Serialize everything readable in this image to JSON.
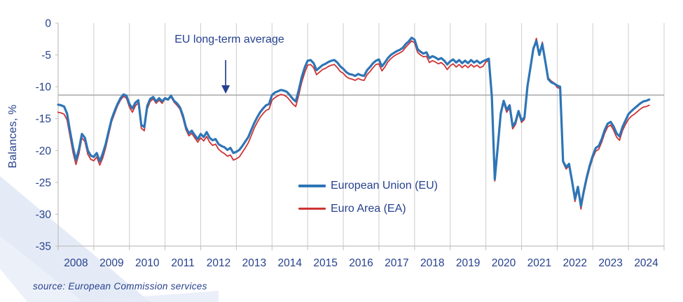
{
  "colors": {
    "navy": "#26418E",
    "grid": "#CDCDCD",
    "axis": "#BFBFBF",
    "avg_line": "#A8A8A8",
    "eu_blue": "#2E75B6",
    "ea_red": "#CE3333",
    "background": "#FFFFFF",
    "decoration": "#E1E7F4"
  },
  "source": {
    "text": "source: European Commission services"
  },
  "chart_data": {
    "type": "line",
    "title": "",
    "xlabel": "",
    "ylabel": "Balances, %",
    "frequency": "monthly",
    "x_start": "2008-01",
    "x_end": "2024-08",
    "ylim": [
      -35,
      0
    ],
    "y_ticks": [
      0,
      -5,
      -10,
      -15,
      -20,
      -25,
      -30,
      -35
    ],
    "x_tick_labels": [
      "2008",
      "2009",
      "2010",
      "2011",
      "2012",
      "2013",
      "2014",
      "2015",
      "2016",
      "2017",
      "2018",
      "2019",
      "2020",
      "2021",
      "2022",
      "2023",
      "2024"
    ],
    "grid": "vertical-yearly",
    "legend_position": "inside-bottom-center",
    "reference_line": {
      "label": "EU long-term average",
      "value": -11.3,
      "arrow_x_year": 2012.7
    },
    "series": [
      {
        "name": "European Union (EU)",
        "color": "#2E75B6",
        "width": 3.2,
        "values": [
          -12.8,
          -12.9,
          -13.1,
          -14.2,
          -17.0,
          -19.5,
          -21.5,
          -19.8,
          -17.4,
          -18.0,
          -20.0,
          -20.8,
          -21.0,
          -20.4,
          -21.7,
          -20.5,
          -19.0,
          -17.0,
          -15.1,
          -13.8,
          -12.7,
          -11.8,
          -11.2,
          -11.4,
          -12.7,
          -13.4,
          -12.5,
          -12.1,
          -16.0,
          -16.3,
          -13.0,
          -11.9,
          -11.6,
          -12.3,
          -11.8,
          -12.3,
          -11.8,
          -12.0,
          -11.4,
          -12.2,
          -12.6,
          -13.2,
          -14.5,
          -16.3,
          -17.3,
          -16.9,
          -17.6,
          -18.2,
          -17.4,
          -17.9,
          -17.1,
          -18.0,
          -18.4,
          -18.2,
          -19.0,
          -19.3,
          -19.5,
          -19.9,
          -19.6,
          -20.4,
          -20.2,
          -19.9,
          -19.3,
          -18.6,
          -17.9,
          -16.8,
          -15.7,
          -14.8,
          -14.0,
          -13.4,
          -12.9,
          -12.7,
          -11.3,
          -10.9,
          -10.7,
          -10.5,
          -10.6,
          -10.8,
          -11.3,
          -11.9,
          -12.3,
          -10.5,
          -8.5,
          -7.0,
          -5.9,
          -5.8,
          -6.3,
          -7.4,
          -7.0,
          -6.6,
          -6.4,
          -6.1,
          -5.9,
          -5.8,
          -6.2,
          -6.8,
          -7.2,
          -7.7,
          -8.0,
          -8.1,
          -8.3,
          -8.0,
          -8.2,
          -8.3,
          -7.4,
          -6.9,
          -6.3,
          -5.9,
          -5.7,
          -6.8,
          -6.2,
          -5.5,
          -5.0,
          -4.7,
          -4.4,
          -4.2,
          -3.9,
          -3.3,
          -2.9,
          -2.3,
          -2.6,
          -4.1,
          -4.5,
          -4.8,
          -4.6,
          -5.5,
          -5.2,
          -5.4,
          -5.7,
          -5.5,
          -5.9,
          -6.5,
          -6.0,
          -5.7,
          -6.2,
          -5.8,
          -6.3,
          -5.9,
          -6.3,
          -5.8,
          -6.2,
          -5.9,
          -6.3,
          -6.0,
          -5.8,
          -5.6,
          -11.5,
          -24.5,
          -19.5,
          -14.2,
          -12.2,
          -13.6,
          -12.9,
          -16.2,
          -15.5,
          -13.8,
          -15.3,
          -14.8,
          -9.9,
          -7.0,
          -4.0,
          -2.8,
          -5.0,
          -3.3,
          -6.0,
          -8.8,
          -9.3,
          -9.5,
          -9.8,
          -10.0,
          -21.7,
          -22.6,
          -22.1,
          -24.8,
          -27.6,
          -25.7,
          -28.7,
          -26.3,
          -24.1,
          -22.3,
          -20.8,
          -19.6,
          -19.3,
          -18.2,
          -16.8,
          -15.8,
          -15.5,
          -16.2,
          -17.3,
          -17.8,
          -16.3,
          -15.3,
          -14.3,
          -13.8,
          -13.4,
          -13.0,
          -12.6,
          -12.3,
          -12.2,
          -12.0
        ]
      },
      {
        "name": "Euro Area (EA)",
        "color": "#CE3333",
        "width": 1.8,
        "values": [
          -14.0,
          -14.1,
          -14.3,
          -15.2,
          -17.8,
          -20.3,
          -22.2,
          -20.5,
          -18.0,
          -18.6,
          -20.6,
          -21.4,
          -21.6,
          -21.0,
          -22.3,
          -21.2,
          -19.6,
          -17.5,
          -15.5,
          -14.2,
          -13.0,
          -12.1,
          -11.5,
          -11.8,
          -13.2,
          -14.0,
          -13.0,
          -12.5,
          -16.5,
          -16.9,
          -13.5,
          -12.3,
          -11.9,
          -12.6,
          -12.1,
          -12.6,
          -11.9,
          -12.1,
          -11.6,
          -12.4,
          -12.9,
          -13.5,
          -14.9,
          -16.7,
          -17.7,
          -17.3,
          -18.0,
          -18.7,
          -18.0,
          -18.5,
          -17.8,
          -18.7,
          -19.2,
          -19.0,
          -19.8,
          -20.2,
          -20.5,
          -20.9,
          -20.7,
          -21.5,
          -21.3,
          -21.0,
          -20.3,
          -19.6,
          -18.8,
          -17.7,
          -16.5,
          -15.6,
          -14.8,
          -14.2,
          -13.7,
          -13.5,
          -12.1,
          -11.7,
          -11.4,
          -11.2,
          -11.3,
          -11.6,
          -12.1,
          -12.7,
          -13.1,
          -11.3,
          -9.3,
          -7.8,
          -6.6,
          -6.5,
          -7.0,
          -8.1,
          -7.7,
          -7.3,
          -7.1,
          -6.8,
          -6.6,
          -6.5,
          -7.0,
          -7.6,
          -7.9,
          -8.4,
          -8.7,
          -8.8,
          -9.0,
          -8.7,
          -8.9,
          -9.0,
          -8.1,
          -7.6,
          -7.0,
          -6.5,
          -6.4,
          -7.5,
          -6.9,
          -6.1,
          -5.6,
          -5.2,
          -4.9,
          -4.7,
          -4.4,
          -3.8,
          -3.3,
          -2.8,
          -3.1,
          -4.6,
          -5.0,
          -5.3,
          -5.2,
          -6.2,
          -5.9,
          -6.1,
          -6.4,
          -6.2,
          -6.6,
          -7.3,
          -6.7,
          -6.4,
          -6.9,
          -6.5,
          -7.0,
          -6.6,
          -7.0,
          -6.5,
          -6.9,
          -6.6,
          -7.0,
          -6.8,
          -6.1,
          -5.9,
          -11.8,
          -24.8,
          -19.8,
          -14.5,
          -12.5,
          -14.0,
          -13.3,
          -16.6,
          -15.9,
          -14.1,
          -15.6,
          -15.1,
          -10.1,
          -7.1,
          -4.0,
          -2.4,
          -4.8,
          -3.0,
          -5.8,
          -8.6,
          -9.1,
          -9.4,
          -10.1,
          -10.3,
          -21.9,
          -22.9,
          -22.4,
          -25.1,
          -28.0,
          -26.1,
          -29.2,
          -26.7,
          -24.5,
          -22.7,
          -21.2,
          -20.1,
          -19.8,
          -18.7,
          -17.3,
          -16.3,
          -16.0,
          -16.8,
          -17.9,
          -18.4,
          -16.9,
          -15.9,
          -15.1,
          -14.6,
          -14.3,
          -13.9,
          -13.5,
          -13.2,
          -13.1,
          -12.9
        ]
      }
    ]
  }
}
